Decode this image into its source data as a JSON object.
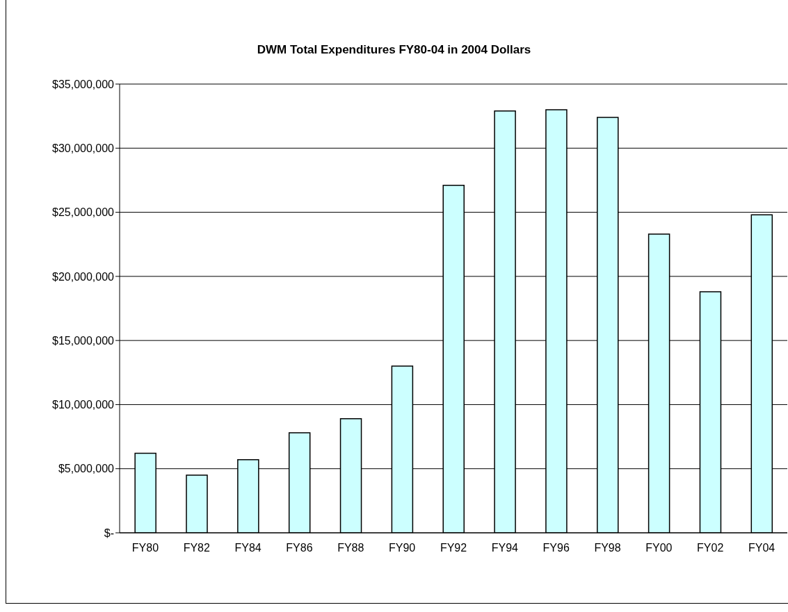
{
  "chart_data": {
    "type": "bar",
    "title": "DWM Total Expenditures FY80-04 in 2004 Dollars",
    "categories": [
      "FY80",
      "FY82",
      "FY84",
      "FY86",
      "FY88",
      "FY90",
      "FY92",
      "FY94",
      "FY96",
      "FY98",
      "FY00",
      "FY02",
      "FY04"
    ],
    "values": [
      6200000,
      4500000,
      5700000,
      7800000,
      8900000,
      13000000,
      27100000,
      32900000,
      33000000,
      32400000,
      23300000,
      18800000,
      24800000
    ],
    "color": "#ccffff",
    "ylim": [
      0,
      35000000
    ],
    "yticks": [
      {
        "value": 0,
        "label": "$-"
      },
      {
        "value": 5000000,
        "label": "$5,000,000"
      },
      {
        "value": 10000000,
        "label": "$10,000,000"
      },
      {
        "value": 15000000,
        "label": "$15,000,000"
      },
      {
        "value": 20000000,
        "label": "$20,000,000"
      },
      {
        "value": 25000000,
        "label": "$25,000,000"
      },
      {
        "value": 30000000,
        "label": "$30,000,000"
      },
      {
        "value": 35000000,
        "label": "$35,000,000"
      }
    ],
    "grid": "y",
    "legend": false
  }
}
